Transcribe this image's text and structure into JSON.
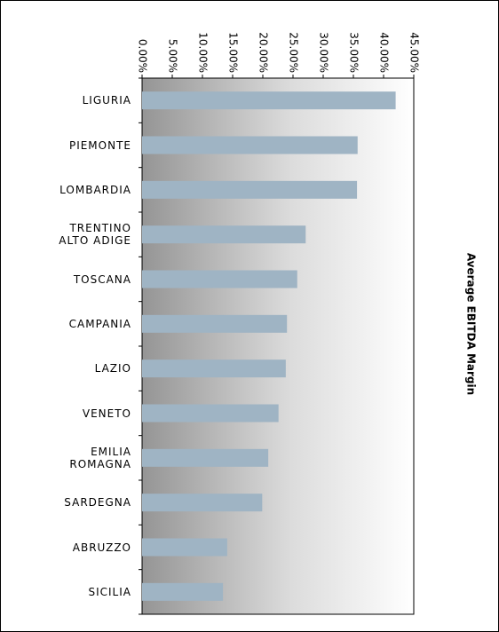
{
  "chart_data": {
    "type": "bar",
    "orientation": "horizontal",
    "title": "Average EBITDA Margin",
    "categories": [
      "LIGURIA",
      "PIEMONTE",
      "LOMBARDIA",
      "TRENTINO\nALTO ADIGE",
      "TOSCANA",
      "CAMPANIA",
      "LAZIO",
      "VENETO",
      "EMILIA\nROMAGNA",
      "SARDEGNA",
      "ABRUZZO",
      "SICILIA"
    ],
    "values": [
      42.0,
      35.7,
      35.6,
      27.1,
      25.7,
      24.0,
      23.8,
      22.6,
      20.9,
      19.9,
      14.1,
      13.4
    ],
    "color": "#9fb4c4",
    "xlim": [
      0,
      45
    ],
    "xticks": [
      {
        "value": 0,
        "label": "0.00%"
      },
      {
        "value": 5,
        "label": "5.00%"
      },
      {
        "value": 10,
        "label": "10.00%"
      },
      {
        "value": 15,
        "label": "15.00%"
      },
      {
        "value": 20,
        "label": "20.00%"
      },
      {
        "value": 25,
        "label": "25.00%"
      },
      {
        "value": 30,
        "label": "30.00%"
      },
      {
        "value": 35,
        "label": "35.00%"
      },
      {
        "value": 40,
        "label": "40.00%"
      },
      {
        "value": 45,
        "label": "45.00%"
      }
    ]
  }
}
